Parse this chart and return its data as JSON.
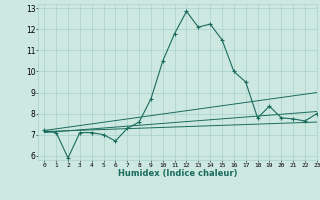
{
  "xlabel": "Humidex (Indice chaleur)",
  "bg_color": "#cce8e0",
  "grid_color": "#aad0c8",
  "line_color": "#1a6b5e",
  "xlim": [
    -0.5,
    23
  ],
  "ylim": [
    5.8,
    13.2
  ],
  "yticks": [
    6,
    7,
    8,
    9,
    10,
    11,
    12,
    13
  ],
  "xticks": [
    0,
    1,
    2,
    3,
    4,
    5,
    6,
    7,
    8,
    9,
    10,
    11,
    12,
    13,
    14,
    15,
    16,
    17,
    18,
    19,
    20,
    21,
    22,
    23
  ],
  "series1_x": [
    0,
    1,
    2,
    3,
    4,
    5,
    6,
    7,
    8,
    9,
    10,
    11,
    12,
    13,
    14,
    15,
    16,
    17,
    18,
    19,
    20,
    21,
    22,
    23
  ],
  "series1_y": [
    7.2,
    7.1,
    5.9,
    7.1,
    7.1,
    7.0,
    6.7,
    7.3,
    7.6,
    8.7,
    10.5,
    11.8,
    12.85,
    12.1,
    12.25,
    11.5,
    10.0,
    9.5,
    7.8,
    8.35,
    7.8,
    7.75,
    7.65,
    8.0
  ],
  "series2_x": [
    0,
    23
  ],
  "series2_y": [
    7.2,
    9.0
  ],
  "series3_x": [
    0,
    23
  ],
  "series3_y": [
    7.1,
    8.1
  ],
  "series4_x": [
    0,
    23
  ],
  "series4_y": [
    7.15,
    7.6
  ]
}
